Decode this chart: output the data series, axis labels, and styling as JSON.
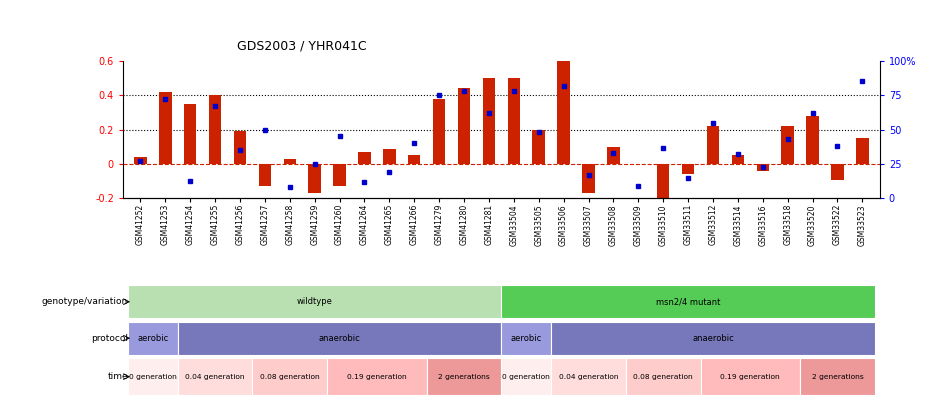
{
  "title": "GDS2003 / YHR041C",
  "samples": [
    "GSM41252",
    "GSM41253",
    "GSM41254",
    "GSM41255",
    "GSM41256",
    "GSM41257",
    "GSM41258",
    "GSM41259",
    "GSM41260",
    "GSM41264",
    "GSM41265",
    "GSM41266",
    "GSM41279",
    "GSM41280",
    "GSM41281",
    "GSM33504",
    "GSM33505",
    "GSM33506",
    "GSM33507",
    "GSM33508",
    "GSM33509",
    "GSM33510",
    "GSM33511",
    "GSM33512",
    "GSM33514",
    "GSM33516",
    "GSM33518",
    "GSM33520",
    "GSM33522",
    "GSM33523"
  ],
  "log2_ratio": [
    0.04,
    0.42,
    0.35,
    0.4,
    0.19,
    -0.13,
    0.03,
    -0.17,
    -0.13,
    0.07,
    0.09,
    0.05,
    0.38,
    0.44,
    0.5,
    0.5,
    0.2,
    0.6,
    -0.17,
    0.1,
    0.0,
    -0.2,
    -0.06,
    0.22,
    0.05,
    -0.04,
    0.22,
    0.28,
    -0.09,
    0.15
  ],
  "percentile": [
    27,
    72,
    13,
    67,
    35,
    50,
    8,
    25,
    45,
    12,
    19,
    40,
    75,
    78,
    62,
    78,
    48,
    82,
    17,
    33,
    9,
    37,
    15,
    55,
    32,
    23,
    43,
    62,
    38,
    85
  ],
  "ylim_left": [
    -0.2,
    0.6
  ],
  "ylim_right": [
    0,
    100
  ],
  "bar_color": "#cc2200",
  "dot_color": "#0000cc",
  "hline_color": "#cc2200",
  "dotted_lines": [
    0.2,
    0.4
  ],
  "dotted_color": "black",
  "background_color": "#ffffff",
  "genotype_row": {
    "label": "genotype/variation",
    "groups": [
      {
        "text": "wildtype",
        "start": 0,
        "end": 14,
        "color": "#b8e0b0"
      },
      {
        "text": "msn2/4 mutant",
        "start": 15,
        "end": 29,
        "color": "#55cc55"
      }
    ]
  },
  "protocol_row": {
    "label": "protocol",
    "groups": [
      {
        "text": "aerobic",
        "start": 0,
        "end": 1,
        "color": "#9999dd"
      },
      {
        "text": "anaerobic",
        "start": 2,
        "end": 14,
        "color": "#7777bb"
      },
      {
        "text": "aerobic",
        "start": 15,
        "end": 16,
        "color": "#9999dd"
      },
      {
        "text": "anaerobic",
        "start": 17,
        "end": 29,
        "color": "#7777bb"
      }
    ]
  },
  "time_row": {
    "label": "time",
    "groups": [
      {
        "text": "0 generation",
        "start": 0,
        "end": 1,
        "color": "#ffeeee"
      },
      {
        "text": "0.04 generation",
        "start": 2,
        "end": 4,
        "color": "#ffdddd"
      },
      {
        "text": "0.08 generation",
        "start": 5,
        "end": 7,
        "color": "#ffcccc"
      },
      {
        "text": "0.19 generation",
        "start": 8,
        "end": 11,
        "color": "#ffbbbb"
      },
      {
        "text": "2 generations",
        "start": 12,
        "end": 14,
        "color": "#ee9999"
      },
      {
        "text": "0 generation",
        "start": 15,
        "end": 16,
        "color": "#ffeeee"
      },
      {
        "text": "0.04 generation",
        "start": 17,
        "end": 19,
        "color": "#ffdddd"
      },
      {
        "text": "0.08 generation",
        "start": 20,
        "end": 22,
        "color": "#ffcccc"
      },
      {
        "text": "0.19 generation",
        "start": 23,
        "end": 26,
        "color": "#ffbbbb"
      },
      {
        "text": "2 generations",
        "start": 27,
        "end": 29,
        "color": "#ee9999"
      }
    ]
  }
}
